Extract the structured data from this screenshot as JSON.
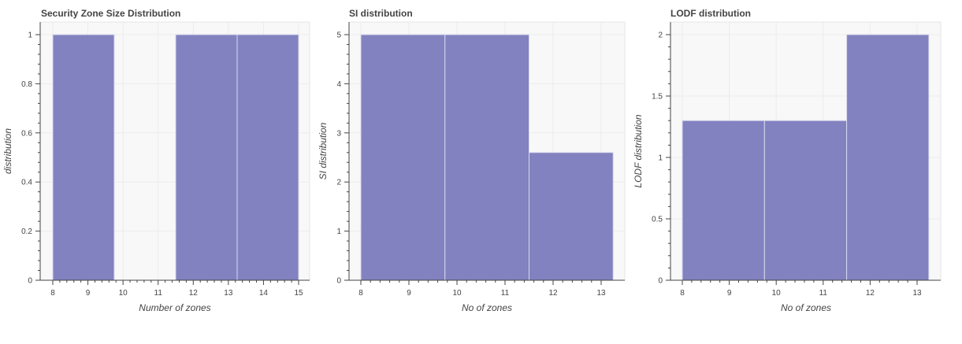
{
  "chart_data": [
    {
      "type": "bar",
      "title": "Security Zone Size Distribution",
      "xlabel": "Number of zones",
      "ylabel": "distribution",
      "xlim": [
        7.8,
        15.3
      ],
      "ylim": [
        0,
        1.04
      ],
      "x_ticks": [
        8,
        9,
        10,
        11,
        12,
        13,
        14,
        15
      ],
      "y_ticks": [
        0,
        0.2,
        0.4,
        0.6,
        0.8,
        1
      ],
      "bins": [
        {
          "left": 8.0,
          "right": 9.75,
          "value": 1
        },
        {
          "left": 9.75,
          "right": 11.5,
          "value": 0
        },
        {
          "left": 11.5,
          "right": 13.25,
          "value": 1
        },
        {
          "left": 13.25,
          "right": 15.0,
          "value": 1
        }
      ],
      "color": "#7b7bbd",
      "grid": true,
      "legend": "none"
    },
    {
      "type": "bar",
      "title": "SI distribution",
      "xlabel": "No of zones",
      "ylabel": "SI distribution",
      "xlim": [
        7.8,
        13.5
      ],
      "ylim": [
        0,
        5.2
      ],
      "x_ticks": [
        8,
        9,
        10,
        11,
        12,
        13
      ],
      "y_ticks": [
        0,
        1,
        2,
        3,
        4,
        5
      ],
      "bins": [
        {
          "left": 8.0,
          "right": 9.75,
          "value": 5
        },
        {
          "left": 9.75,
          "right": 11.5,
          "value": 5
        },
        {
          "left": 11.5,
          "right": 13.25,
          "value": 2.6
        }
      ],
      "color": "#7b7bbd",
      "grid": true,
      "legend": "none"
    },
    {
      "type": "bar",
      "title": "LODF distribution",
      "xlabel": "No of zones",
      "ylabel": "LODF distribution",
      "xlim": [
        7.8,
        13.5
      ],
      "ylim": [
        0,
        2.08
      ],
      "x_ticks": [
        8,
        9,
        10,
        11,
        12,
        13
      ],
      "y_ticks": [
        0,
        0.5,
        1,
        1.5,
        2
      ],
      "bins": [
        {
          "left": 8.0,
          "right": 9.75,
          "value": 1.3
        },
        {
          "left": 9.75,
          "right": 11.5,
          "value": 1.3
        },
        {
          "left": 11.5,
          "right": 13.25,
          "value": 2
        }
      ],
      "color": "#7b7bbd",
      "grid": true,
      "legend": "none"
    }
  ]
}
